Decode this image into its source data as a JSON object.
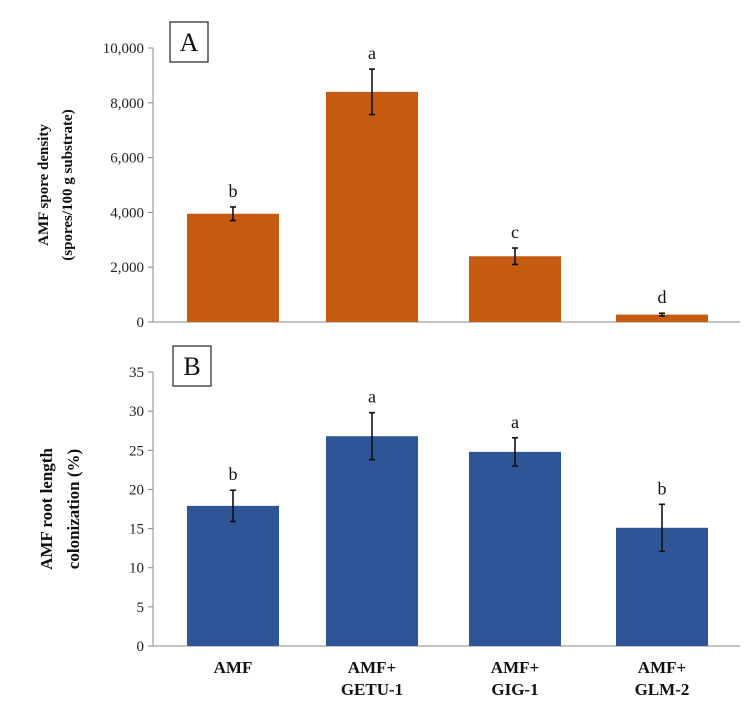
{
  "categories": [
    "AMF",
    "AMF+\nGETU-1",
    "AMF+\nGIG-1",
    "AMF+\nGLM-2"
  ],
  "chart_data": [
    {
      "type": "bar",
      "panel": "A",
      "categories": [
        "AMF",
        "AMF+ GETU-1",
        "AMF+ GIG-1",
        "AMF+ GLM-2"
      ],
      "values": [
        3950,
        8400,
        2400,
        270
      ],
      "errors": [
        250,
        830,
        300,
        50
      ],
      "significance": [
        "b",
        "a",
        "c",
        "d"
      ],
      "ylabel": [
        "AMF spore density",
        "(spores/100 g substrate)"
      ],
      "ylim": [
        0,
        10000
      ],
      "yticks": [
        0,
        2000,
        4000,
        6000,
        8000,
        10000
      ],
      "ytick_labels": [
        "0",
        "2,000",
        "4,000",
        "6,000",
        "8,000",
        "10,000"
      ],
      "color": "#c55a11",
      "grid": false
    },
    {
      "type": "bar",
      "panel": "B",
      "categories": [
        "AMF",
        "AMF+ GETU-1",
        "AMF+ GIG-1",
        "AMF+ GLM-2"
      ],
      "values": [
        17.9,
        26.8,
        24.8,
        15.1
      ],
      "errors": [
        2.0,
        3.0,
        1.8,
        3.0
      ],
      "significance": [
        "b",
        "a",
        "a",
        "b"
      ],
      "ylabel": [
        "AMF root length",
        "colonization (%)"
      ],
      "ylim": [
        0,
        35
      ],
      "yticks": [
        0,
        5,
        10,
        15,
        20,
        25,
        30,
        35
      ],
      "ytick_labels": [
        "0",
        "5",
        "10",
        "15",
        "20",
        "25",
        "30",
        "35"
      ],
      "color": "#2f5597",
      "grid": false
    }
  ]
}
